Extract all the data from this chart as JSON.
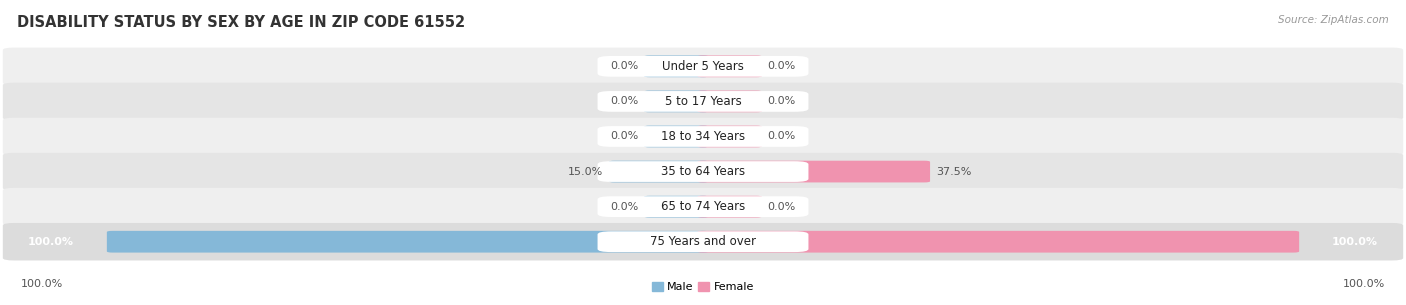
{
  "title": "DISABILITY STATUS BY SEX BY AGE IN ZIP CODE 61552",
  "source": "Source: ZipAtlas.com",
  "categories": [
    "Under 5 Years",
    "5 to 17 Years",
    "18 to 34 Years",
    "35 to 64 Years",
    "65 to 74 Years",
    "75 Years and over"
  ],
  "male_values": [
    0.0,
    0.0,
    0.0,
    15.0,
    0.0,
    100.0
  ],
  "female_values": [
    0.0,
    0.0,
    0.0,
    37.5,
    0.0,
    100.0
  ],
  "male_color": "#85b8d8",
  "female_color": "#f093af",
  "max_value": 100.0,
  "title_fontsize": 10.5,
  "label_fontsize": 8.0,
  "category_fontsize": 8.5,
  "source_fontsize": 7.5,
  "row_colors": [
    "#efefef",
    "#e5e5e5",
    "#efefef",
    "#e5e5e5",
    "#efefef",
    "#dcdcdc"
  ],
  "label_color": "#555555",
  "category_color": "#222222",
  "title_color": "#333333"
}
